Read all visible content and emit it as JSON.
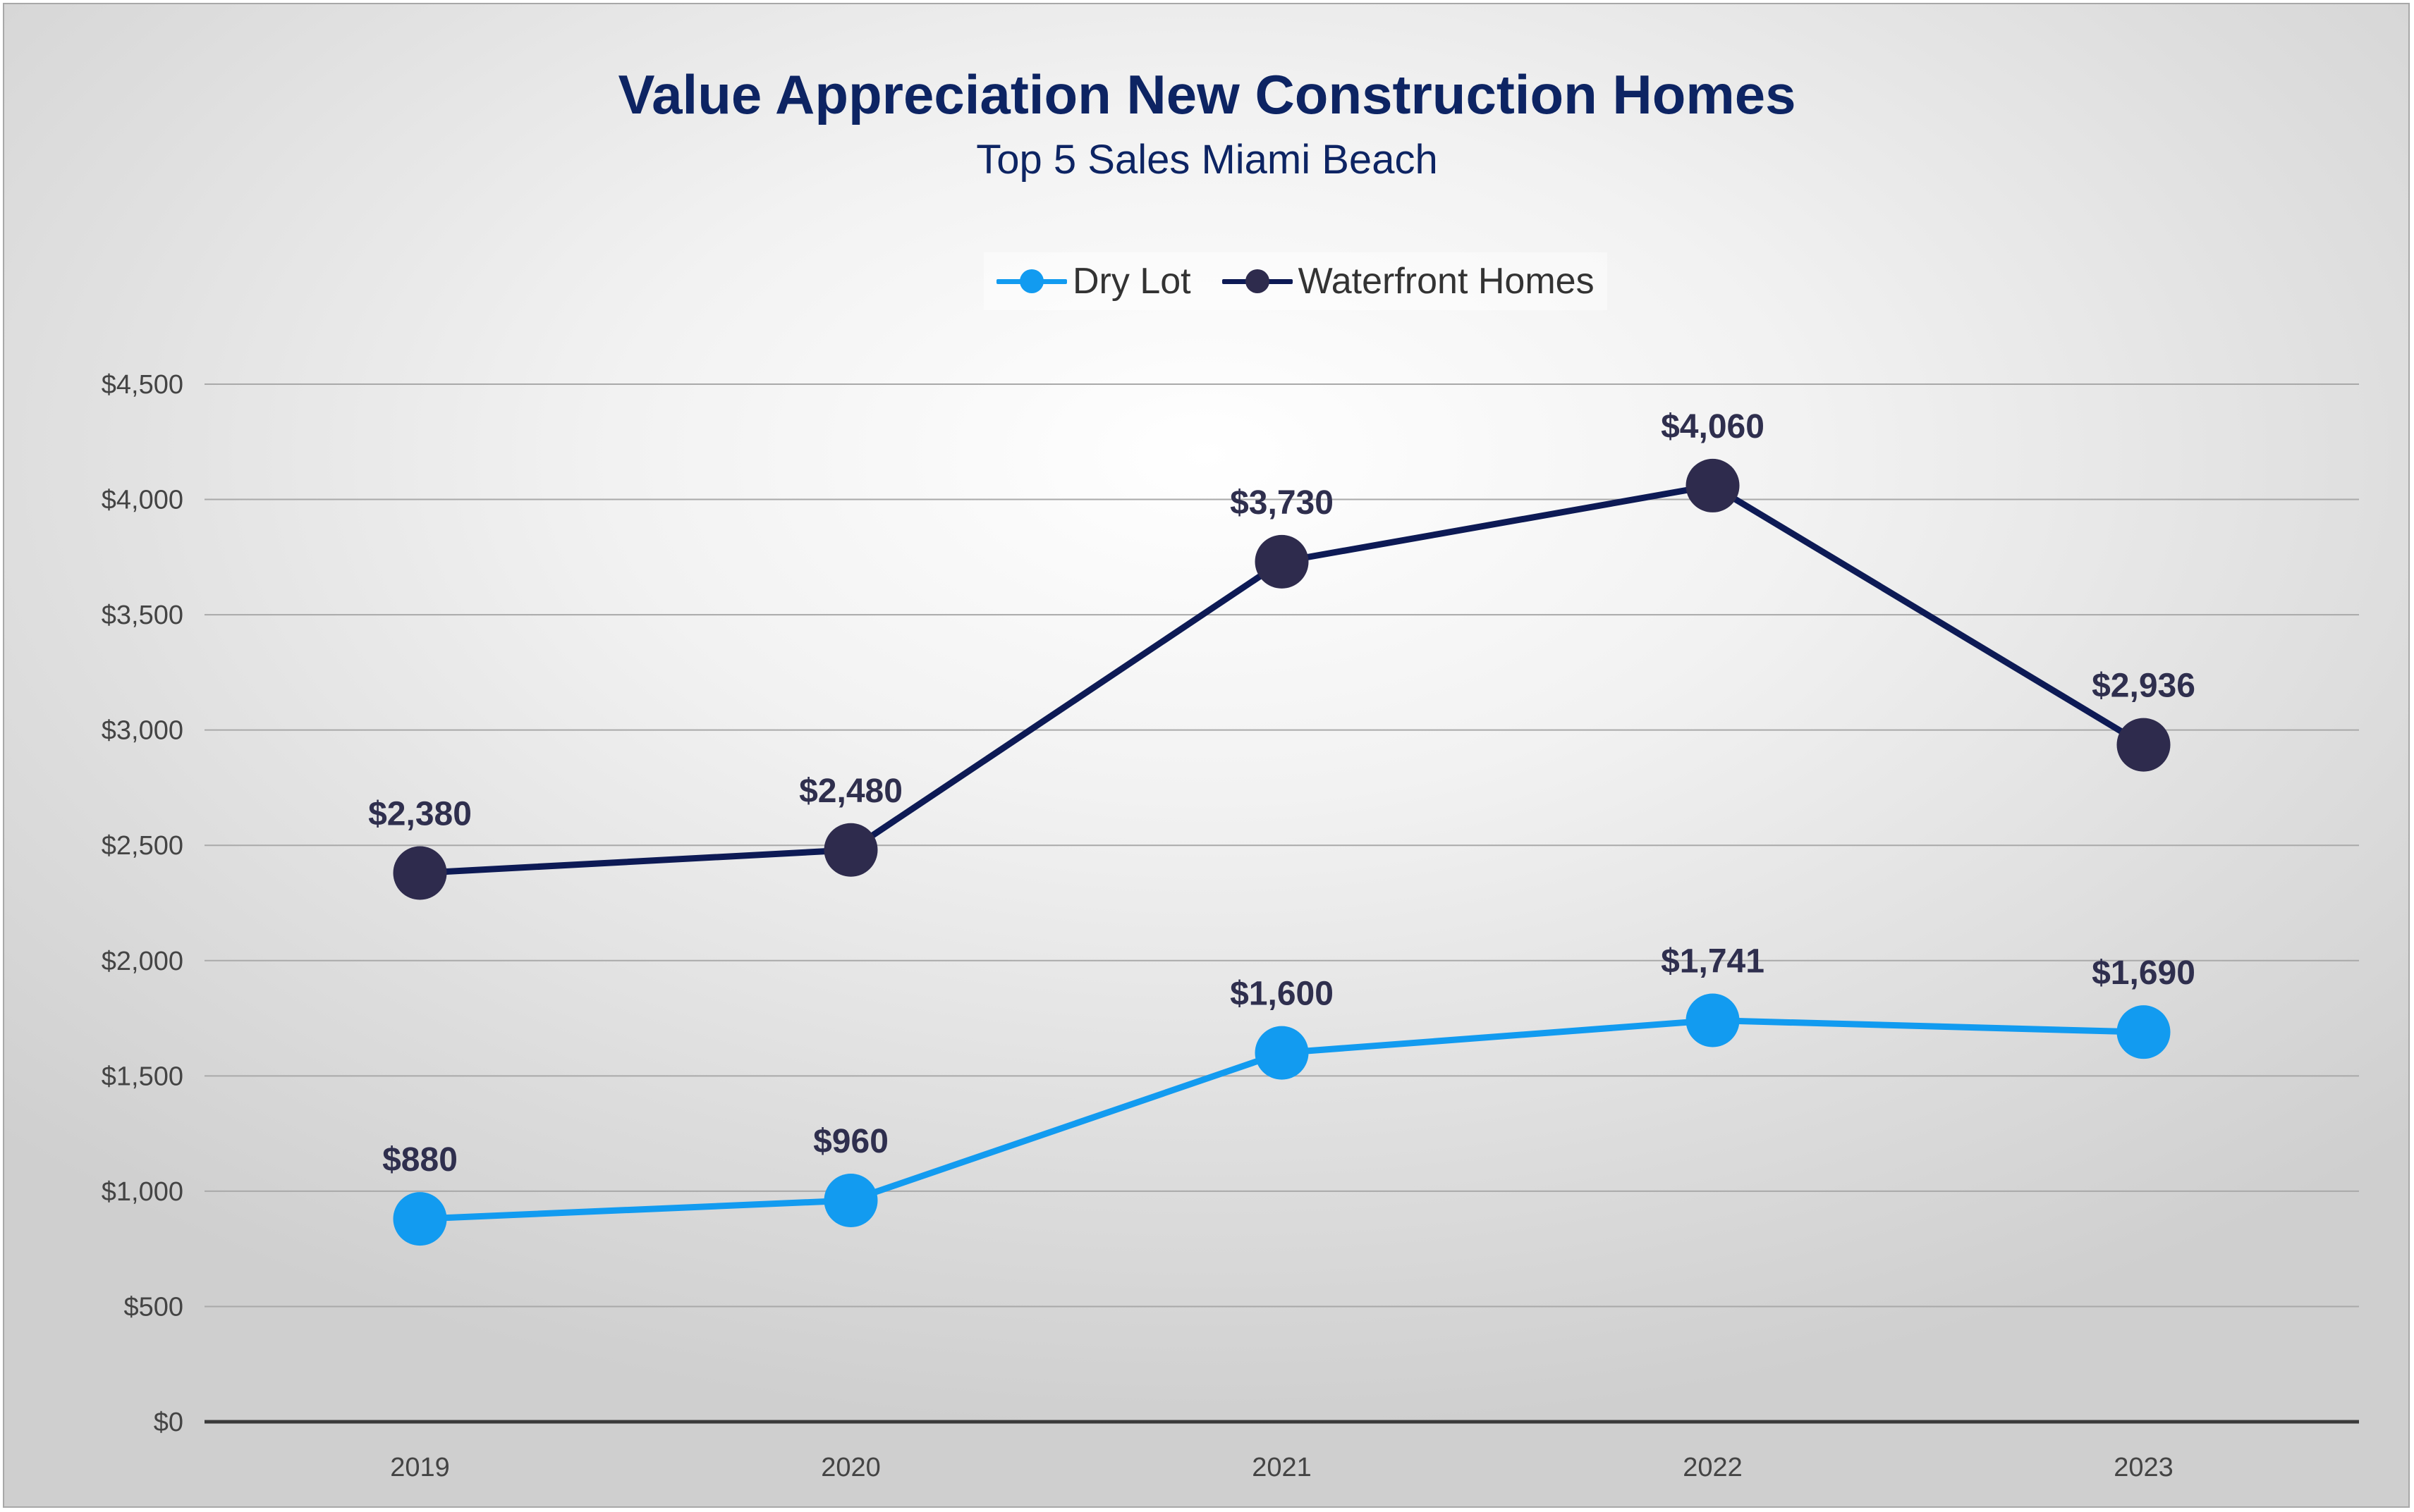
{
  "chart_data": {
    "type": "line",
    "title": "Value Appreciation New Construction Homes",
    "subtitle": "Top 5 Sales Miami Beach",
    "categories": [
      "2019",
      "2020",
      "2021",
      "2022",
      "2023"
    ],
    "series": [
      {
        "name": "Dry Lot",
        "values": [
          880,
          960,
          1600,
          1741,
          1690
        ],
        "labels": [
          "$880",
          "$960",
          "$1,600",
          "$1,741",
          "$1,690"
        ],
        "color": "#129bf0"
      },
      {
        "name": "Waterfront Homes",
        "values": [
          2380,
          2480,
          3730,
          4060,
          2936
        ],
        "labels": [
          "$2,380",
          "$2,480",
          "$3,730",
          "$4,060",
          "$2,936"
        ],
        "color": "#0d1a55",
        "marker_color": "#2e2b4d"
      }
    ],
    "yticks": [
      0,
      500,
      1000,
      1500,
      2000,
      2500,
      3000,
      3500,
      4000,
      4500
    ],
    "ytick_labels": [
      "$0",
      "$500",
      "$1,000",
      "$1,500",
      "$2,000",
      "$2,500",
      "$3,000",
      "$3,500",
      "$4,000",
      "$4,500"
    ],
    "ylim": [
      0,
      4500
    ],
    "grid": true,
    "legend_position": "top-center"
  }
}
